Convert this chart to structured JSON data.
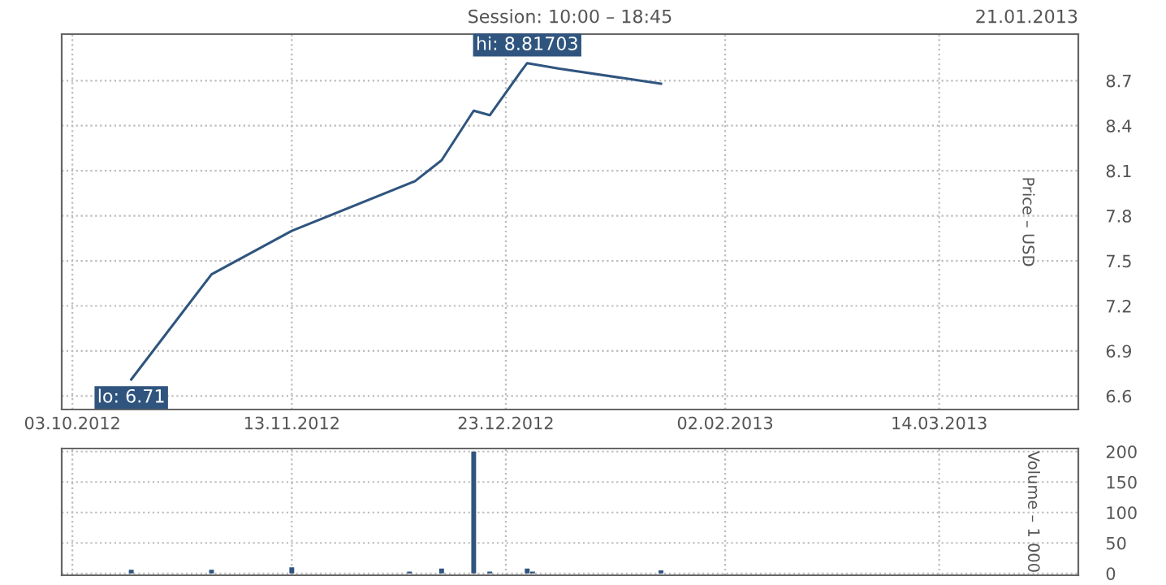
{
  "chart_data": [
    {
      "type": "line",
      "title": "Session: 10:00 – 18:45",
      "subtitle": "21.01.2013",
      "ylabel": "Price – USD",
      "x": [
        "2012-10-14",
        "2012-10-29",
        "2012-11-13",
        "2012-12-06",
        "2012-12-11",
        "2012-12-17",
        "2012-12-20",
        "2012-12-26",
        "2012-12-27",
        "2013-01-02",
        "2013-01-21"
      ],
      "series": [
        {
          "color": "#2f557f",
          "values": [
            6.71,
            7.41,
            7.7,
            8.03,
            8.17,
            8.5,
            8.47,
            8.77,
            8.81703,
            8.78,
            8.68
          ]
        }
      ],
      "xlim": [
        "2012-10-01",
        "2013-04-09"
      ],
      "xticks": [
        {
          "value": "2012-10-03",
          "label": "03.10.2012"
        },
        {
          "value": "2012-11-13",
          "label": "13.11.2012"
        },
        {
          "value": "2012-12-23",
          "label": "23.12.2012"
        },
        {
          "value": "2013-02-02",
          "label": "02.02.2013"
        },
        {
          "value": "2013-03-14",
          "label": "14.03.2013"
        }
      ],
      "ylim": [
        6.51,
        9.01
      ],
      "yticks": [
        6.6,
        6.9,
        7.2,
        7.5,
        7.8,
        8.1,
        8.4,
        8.7
      ],
      "annotations": [
        {
          "text": "hi: 8.81703",
          "x": "2012-12-27",
          "y": 8.81703
        },
        {
          "text": "lo: 6.71",
          "x": "2012-10-14",
          "y": 6.71
        }
      ],
      "grid": true,
      "legend": false
    },
    {
      "type": "bar",
      "ylabel": "Volume – 1 000",
      "x": [
        "2012-10-14",
        "2012-10-29",
        "2012-11-13",
        "2012-12-05",
        "2012-12-11",
        "2012-12-17",
        "2012-12-20",
        "2012-12-27",
        "2012-12-28",
        "2013-01-21"
      ],
      "series": [
        {
          "color": "#2f557f",
          "values": [
            6,
            6,
            10,
            3,
            8,
            200,
            3,
            8,
            3,
            5
          ]
        }
      ],
      "xlim": [
        "2012-10-01",
        "2013-04-09"
      ],
      "ylim": [
        -3,
        205
      ],
      "yticks": [
        0,
        50,
        100,
        150,
        200
      ],
      "tick_labels": "y",
      "grid": true
    }
  ]
}
